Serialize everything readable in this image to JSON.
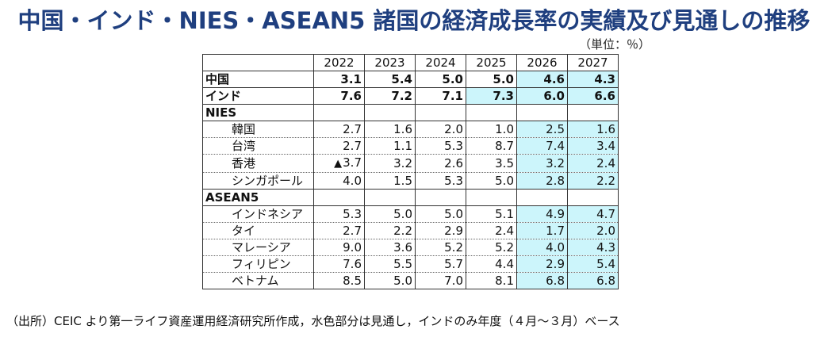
{
  "title": "中国・インド・NIES・ASEAN5 諸国の経済成長率の実績及び見通しの推移",
  "unit": "（単位：％）",
  "colors": {
    "title": "#1f3f7f",
    "forecast_fill": "#ccf5fb"
  },
  "table": {
    "headers": [
      "2022",
      "2023",
      "2024",
      "2025",
      "2026",
      "2027"
    ],
    "rows": [
      {
        "label": "中国",
        "values": [
          "3.1",
          "5.4",
          "5.0",
          "5.0",
          "4.6",
          "4.3"
        ]
      },
      {
        "label": "インド",
        "values": [
          "7.6",
          "7.2",
          "7.1",
          "7.3",
          "6.0",
          "6.6"
        ]
      },
      {
        "label": "NIES"
      },
      {
        "label": "韓国",
        "values": [
          "2.7",
          "1.6",
          "2.0",
          "1.0",
          "2.5",
          "1.6"
        ]
      },
      {
        "label": "台湾",
        "values": [
          "2.7",
          "1.1",
          "5.3",
          "8.7",
          "7.4",
          "3.4"
        ]
      },
      {
        "label": "香港",
        "marker": "▲",
        "values": [
          "3.7",
          "3.2",
          "2.6",
          "3.5",
          "3.2",
          "2.4"
        ]
      },
      {
        "label": "シンガポール",
        "values": [
          "4.0",
          "1.5",
          "5.3",
          "5.0",
          "2.8",
          "2.2"
        ]
      },
      {
        "label": "ASEAN5"
      },
      {
        "label": "インドネシア",
        "values": [
          "5.3",
          "5.0",
          "5.0",
          "5.1",
          "4.9",
          "4.7"
        ]
      },
      {
        "label": "タイ",
        "values": [
          "2.7",
          "2.2",
          "2.9",
          "2.4",
          "1.7",
          "2.0"
        ]
      },
      {
        "label": "マレーシア",
        "values": [
          "9.0",
          "3.6",
          "5.2",
          "5.2",
          "4.0",
          "4.3"
        ]
      },
      {
        "label": "フィリピン",
        "values": [
          "7.6",
          "5.5",
          "5.7",
          "4.4",
          "2.9",
          "5.4"
        ]
      },
      {
        "label": "ベトナム",
        "values": [
          "8.5",
          "5.0",
          "7.0",
          "8.1",
          "6.8",
          "6.8"
        ]
      }
    ]
  },
  "footnote": "（出所）CEIC より第一ライフ資産運用経済研究所作成，水色部分は見通し，インドのみ年度（４月～３月）ベース"
}
